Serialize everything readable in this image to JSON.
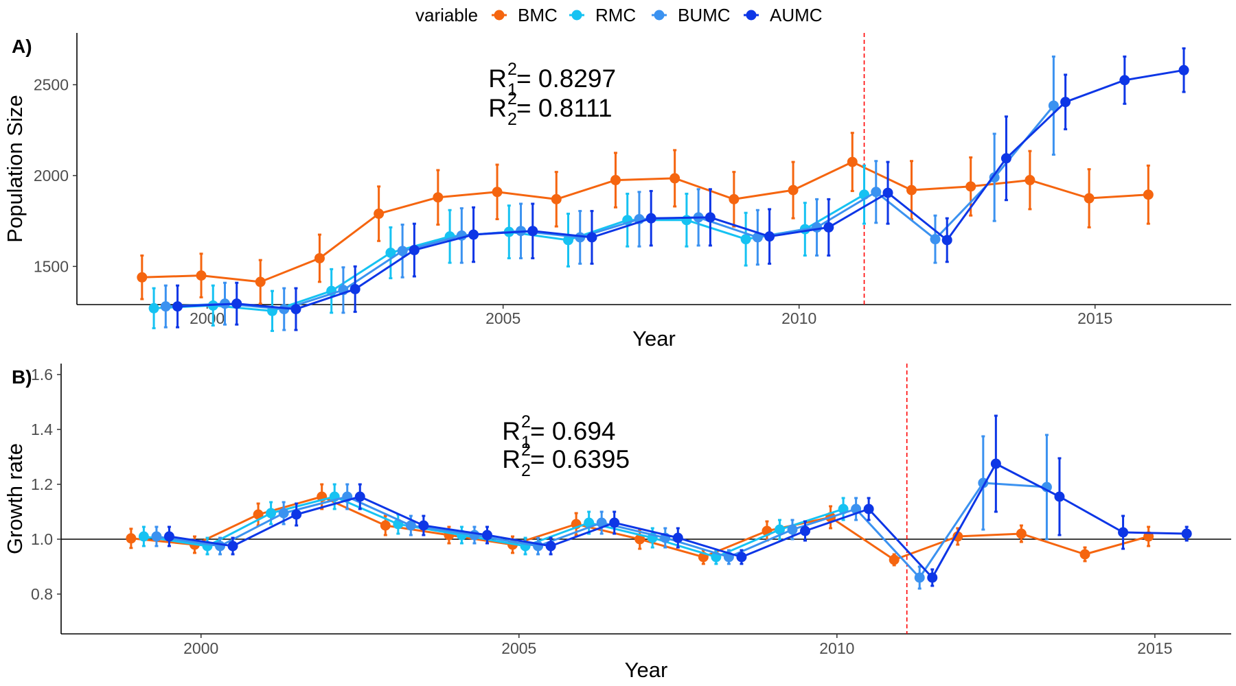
{
  "legend": {
    "title": "variable",
    "entries": [
      {
        "name": "BMC",
        "color": "#f5650f"
      },
      {
        "name": "RMC",
        "color": "#16c2f2"
      },
      {
        "name": "BUMC",
        "color": "#3b92f0"
      },
      {
        "name": "AUMC",
        "color": "#0d36e6"
      }
    ]
  },
  "chart_data": [
    {
      "type": "line",
      "panel_label": "A)",
      "xlabel": "Year",
      "ylabel": "Population Size",
      "xlim": [
        1997.8,
        2017.3
      ],
      "ylim": [
        1290,
        2785
      ],
      "xticks": [
        2000,
        2005,
        2010,
        2015
      ],
      "yticks": [
        1500,
        2000,
        2500
      ],
      "vline": 2011.1,
      "annotations": [
        {
          "main": "R",
          "sup": "2",
          "sub": "1",
          "rest": " = 0.8297"
        },
        {
          "main": "R",
          "sup": "2",
          "sub": "2",
          "rest": " = 0.8111"
        }
      ],
      "series": [
        {
          "name": "BMC",
          "color": "#f5650f",
          "x": [
            1998.9,
            1999.9,
            2000.9,
            2001.9,
            2002.9,
            2003.9,
            2004.9,
            2005.9,
            2006.9,
            2007.9,
            2008.9,
            2009.9,
            2010.9,
            2011.9,
            2012.9,
            2013.9,
            2014.9,
            2015.9
          ],
          "y": [
            1440,
            1450,
            1415,
            1545,
            1790,
            1880,
            1910,
            1870,
            1975,
            1985,
            1870,
            1920,
            2075,
            1920,
            1940,
            1975,
            1875,
            1895
          ],
          "err": [
            120,
            120,
            120,
            130,
            150,
            150,
            150,
            150,
            150,
            155,
            150,
            155,
            160,
            160,
            160,
            160,
            160,
            160
          ]
        },
        {
          "name": "RMC",
          "color": "#16c2f2",
          "x": [
            1999.1,
            2000.1,
            2001.1,
            2002.1,
            2003.1,
            2004.1,
            2005.1,
            2006.1,
            2007.1,
            2008.1,
            2009.1,
            2010.1,
            2011.1
          ],
          "y": [
            1270,
            1285,
            1255,
            1365,
            1575,
            1665,
            1690,
            1645,
            1755,
            1755,
            1650,
            1705,
            1895
          ],
          "err": [
            110,
            110,
            110,
            120,
            140,
            145,
            145,
            145,
            145,
            145,
            145,
            145,
            160
          ]
        },
        {
          "name": "BUMC",
          "color": "#3b92f0",
          "x": [
            1999.3,
            2000.3,
            2001.3,
            2002.3,
            2003.3,
            2004.3,
            2005.3,
            2006.3,
            2007.3,
            2008.3,
            2009.3,
            2010.3,
            2011.3,
            2012.3,
            2013.3,
            2014.3
          ],
          "y": [
            1280,
            1295,
            1265,
            1370,
            1585,
            1670,
            1695,
            1660,
            1760,
            1770,
            1660,
            1715,
            1910,
            1650,
            1990,
            2385
          ],
          "err": [
            115,
            115,
            115,
            125,
            145,
            150,
            150,
            145,
            150,
            155,
            150,
            155,
            170,
            130,
            240,
            270
          ]
        },
        {
          "name": "AUMC",
          "color": "#0d36e6",
          "x": [
            1999.5,
            2000.5,
            2001.5,
            2002.5,
            2003.5,
            2004.5,
            2005.5,
            2006.5,
            2007.5,
            2008.5,
            2009.5,
            2010.5,
            2011.5,
            2012.5,
            2013.5,
            2014.5,
            2015.5,
            2016.5
          ],
          "y": [
            1280,
            1295,
            1265,
            1375,
            1590,
            1675,
            1695,
            1660,
            1765,
            1770,
            1665,
            1715,
            1905,
            1645,
            2095,
            2405,
            2525,
            2580
          ],
          "err": [
            115,
            115,
            115,
            125,
            145,
            150,
            150,
            145,
            150,
            155,
            150,
            155,
            170,
            120,
            230,
            150,
            130,
            120
          ]
        }
      ]
    },
    {
      "type": "line",
      "panel_label": "B)",
      "xlabel": "Year",
      "ylabel": "Growth rate",
      "xlim": [
        1997.8,
        2016.2
      ],
      "ylim": [
        0.655,
        1.64
      ],
      "xticks": [
        2000,
        2005,
        2010,
        2015
      ],
      "yticks": [
        0.8,
        1.0,
        1.2,
        1.4,
        1.6
      ],
      "ytick_labels": [
        "0.8",
        "1.0",
        "1.2",
        "1.4",
        "1.6"
      ],
      "hline": 1.0,
      "vline": 2011.1,
      "annotations": [
        {
          "main": "R",
          "sup": "2",
          "sub": "1",
          "rest": " = 0.694"
        },
        {
          "main": "R",
          "sup": "2",
          "sub": "2",
          "rest": " = 0.6395"
        }
      ],
      "series": [
        {
          "name": "BMC",
          "color": "#f5650f",
          "x": [
            1998.9,
            1999.9,
            2000.9,
            2001.9,
            2002.9,
            2003.9,
            2004.9,
            2005.9,
            2006.9,
            2007.9,
            2008.9,
            2009.9,
            2010.9,
            2011.9,
            2012.9,
            2013.9,
            2014.9
          ],
          "y": [
            1.003,
            0.98,
            1.09,
            1.155,
            1.05,
            1.015,
            0.98,
            1.055,
            1.0,
            0.935,
            1.03,
            1.08,
            0.925,
            1.01,
            1.02,
            0.945,
            1.01
          ],
          "err": [
            0.035,
            0.03,
            0.04,
            0.045,
            0.035,
            0.03,
            0.03,
            0.04,
            0.035,
            0.025,
            0.035,
            0.04,
            0.02,
            0.03,
            0.03,
            0.025,
            0.035
          ]
        },
        {
          "name": "RMC",
          "color": "#16c2f2",
          "x": [
            1999.1,
            2000.1,
            2001.1,
            2002.1,
            2003.1,
            2004.1,
            2005.1,
            2006.1,
            2007.1,
            2008.1,
            2009.1,
            2010.1
          ],
          "y": [
            1.01,
            0.975,
            1.095,
            1.155,
            1.055,
            1.015,
            0.975,
            1.06,
            1.005,
            0.935,
            1.035,
            1.11
          ],
          "err": [
            0.035,
            0.03,
            0.04,
            0.045,
            0.035,
            0.03,
            0.03,
            0.04,
            0.035,
            0.025,
            0.035,
            0.04
          ]
        },
        {
          "name": "BUMC",
          "color": "#3b92f0",
          "x": [
            1999.3,
            2000.3,
            2001.3,
            2002.3,
            2003.3,
            2004.3,
            2005.3,
            2006.3,
            2007.3,
            2008.3,
            2009.3,
            2010.3,
            2011.3,
            2012.3,
            2013.3
          ],
          "y": [
            1.01,
            0.975,
            1.095,
            1.155,
            1.05,
            1.015,
            0.975,
            1.06,
            1.005,
            0.935,
            1.035,
            1.11,
            0.86,
            1.205,
            1.19
          ],
          "err": [
            0.035,
            0.03,
            0.04,
            0.045,
            0.035,
            0.03,
            0.03,
            0.04,
            0.035,
            0.025,
            0.035,
            0.04,
            0.04,
            0.17,
            0.19
          ]
        },
        {
          "name": "AUMC",
          "color": "#0d36e6",
          "x": [
            1999.5,
            2000.5,
            2001.5,
            2002.5,
            2003.5,
            2004.5,
            2005.5,
            2006.5,
            2007.5,
            2008.5,
            2009.5,
            2010.5,
            2011.5,
            2012.5,
            2013.5,
            2014.5,
            2015.5
          ],
          "y": [
            1.01,
            0.975,
            1.09,
            1.155,
            1.05,
            1.015,
            0.975,
            1.06,
            1.005,
            0.935,
            1.03,
            1.11,
            0.86,
            1.275,
            1.155,
            1.025,
            1.02
          ],
          "err": [
            0.035,
            0.03,
            0.04,
            0.045,
            0.035,
            0.03,
            0.03,
            0.04,
            0.035,
            0.025,
            0.035,
            0.04,
            0.03,
            0.175,
            0.14,
            0.06,
            0.025
          ]
        }
      ]
    }
  ]
}
